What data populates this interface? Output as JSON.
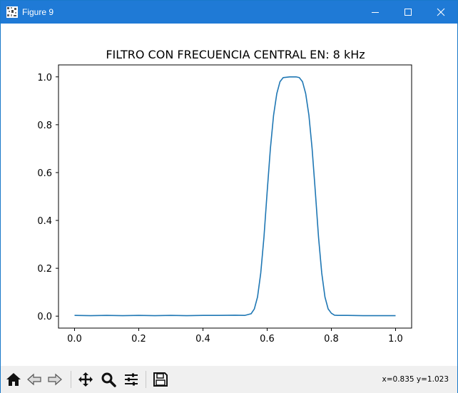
{
  "window": {
    "title": "Figure 9",
    "controls": [
      "minimize-icon",
      "maximize-icon",
      "close-icon"
    ]
  },
  "chart_data": {
    "type": "line",
    "title": "FILTRO CON FRECUENCIA CENTRAL EN:  8 kHz",
    "xlabel": "",
    "ylabel": "",
    "xlim": [
      -0.05,
      1.05
    ],
    "ylim": [
      -0.05,
      1.05
    ],
    "xticks": [
      0.0,
      0.2,
      0.4,
      0.6,
      0.8,
      1.0
    ],
    "yticks": [
      0.0,
      0.2,
      0.4,
      0.6,
      0.8,
      1.0
    ],
    "xtick_labels": [
      "0.0",
      "0.2",
      "0.4",
      "0.6",
      "0.8",
      "1.0"
    ],
    "ytick_labels": [
      "0.0",
      "0.2",
      "0.4",
      "0.6",
      "0.8",
      "1.0"
    ],
    "grid": false,
    "series": [
      {
        "color": "#1f77b4",
        "x": [
          0.0,
          0.05,
          0.1,
          0.15,
          0.2,
          0.25,
          0.3,
          0.35,
          0.4,
          0.45,
          0.5,
          0.53,
          0.55,
          0.56,
          0.57,
          0.58,
          0.59,
          0.6,
          0.61,
          0.62,
          0.63,
          0.64,
          0.65,
          0.67,
          0.69,
          0.7,
          0.71,
          0.72,
          0.73,
          0.74,
          0.75,
          0.76,
          0.77,
          0.78,
          0.79,
          0.8,
          0.81,
          0.82,
          0.85,
          0.9,
          0.95,
          1.0
        ],
        "y": [
          0.003,
          0.002,
          0.003,
          0.002,
          0.003,
          0.002,
          0.003,
          0.002,
          0.003,
          0.003,
          0.004,
          0.003,
          0.01,
          0.03,
          0.08,
          0.18,
          0.33,
          0.52,
          0.7,
          0.84,
          0.93,
          0.98,
          0.997,
          1.0,
          1.0,
          0.997,
          0.98,
          0.93,
          0.84,
          0.7,
          0.52,
          0.33,
          0.18,
          0.08,
          0.03,
          0.012,
          0.004,
          0.003,
          0.003,
          0.002,
          0.002,
          0.002
        ]
      }
    ],
    "line_color": "#1f77b4"
  },
  "toolbar": {
    "buttons": [
      "home-icon",
      "back-icon",
      "forward-icon",
      "pan-icon",
      "zoom-icon",
      "configure-subplots-icon",
      "save-icon"
    ],
    "coordinates": "x=0.835 y=1.023"
  },
  "colors": {
    "titlebar": "#1f7ad6",
    "toolbar_bg": "#f0f0f0",
    "line": "#1f77b4"
  }
}
